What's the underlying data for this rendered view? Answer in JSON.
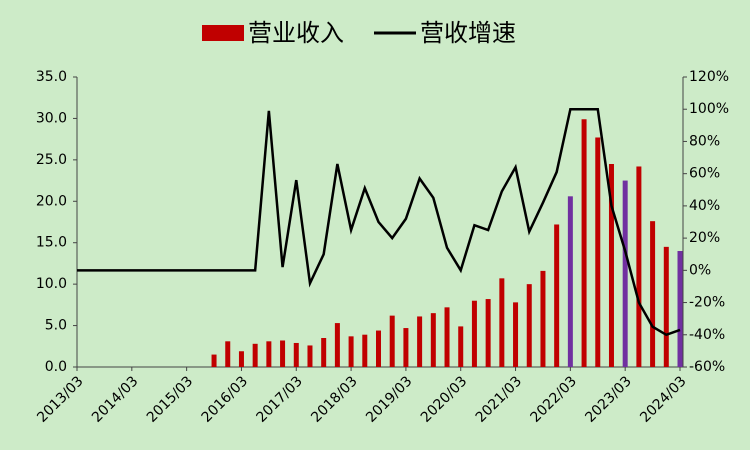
{
  "chart_data": {
    "type": "bar-line",
    "categories": [
      "2013/03",
      null,
      null,
      null,
      "2014/03",
      null,
      null,
      null,
      "2015/03",
      null,
      null,
      null,
      "2016/03",
      null,
      null,
      null,
      "2017/03",
      null,
      null,
      null,
      "2018/03",
      null,
      null,
      null,
      "2019/03",
      null,
      null,
      null,
      "2020/03",
      null,
      null,
      null,
      "2021/03",
      null,
      null,
      null,
      "2022/03",
      null,
      null,
      null,
      "2023/03",
      null,
      null,
      null,
      "2024/03"
    ],
    "series": [
      {
        "name": "营业收入",
        "type": "bar",
        "color": "#c00000",
        "values": [
          null,
          null,
          null,
          null,
          null,
          null,
          null,
          null,
          null,
          null,
          1.5,
          3.1,
          1.9,
          2.8,
          3.1,
          3.2,
          2.9,
          2.6,
          3.5,
          5.3,
          3.7,
          3.9,
          4.4,
          6.2,
          4.7,
          6.1,
          6.5,
          7.2,
          4.9,
          8.0,
          8.2,
          10.7,
          7.8,
          10.0,
          11.6,
          17.2,
          20.6,
          29.9,
          27.7,
          24.5,
          22.5,
          24.2,
          17.6,
          14.5,
          14.0
        ],
        "colors": [
          null,
          null,
          null,
          null,
          null,
          null,
          null,
          null,
          null,
          null,
          "#c00000",
          "#c00000",
          "#c00000",
          "#c00000",
          "#c00000",
          "#c00000",
          "#c00000",
          "#c00000",
          "#c00000",
          "#c00000",
          "#c00000",
          "#c00000",
          "#c00000",
          "#c00000",
          "#c00000",
          "#c00000",
          "#c00000",
          "#c00000",
          "#c00000",
          "#c00000",
          "#c00000",
          "#c00000",
          "#c00000",
          "#c00000",
          "#c00000",
          "#c00000",
          "#7030a0",
          "#c00000",
          "#c00000",
          "#c00000",
          "#7030a0",
          "#c00000",
          "#c00000",
          "#c00000",
          "#7030a0"
        ]
      },
      {
        "name": "营收增速",
        "type": "line",
        "axis": "y2",
        "color": "#000000",
        "values": [
          0,
          0,
          0,
          0,
          0,
          0,
          0,
          0,
          0,
          0,
          0,
          0,
          0,
          0,
          99,
          2,
          56,
          -8,
          10,
          66,
          25,
          51,
          30,
          20,
          32,
          57,
          45,
          14,
          0,
          28,
          25,
          49,
          64,
          24,
          42,
          61,
          100,
          100,
          100,
          40,
          12,
          -20,
          -35,
          -40,
          -37
        ]
      }
    ],
    "ylim": [
      0,
      35
    ],
    "yticks": [
      {
        "value": 0,
        "label": "0.0"
      },
      {
        "value": 5,
        "label": "5.0"
      },
      {
        "value": 10,
        "label": "10.0"
      },
      {
        "value": 15,
        "label": "15.0"
      },
      {
        "value": 20,
        "label": "20.0"
      },
      {
        "value": 25,
        "label": "25.0"
      },
      {
        "value": 30,
        "label": "30.0"
      },
      {
        "value": 35,
        "label": "35.0"
      }
    ],
    "y2lim": [
      -60,
      120
    ],
    "y2ticks": [
      {
        "value": -60,
        "label": "-60%"
      },
      {
        "value": -40,
        "label": "-40%"
      },
      {
        "value": -20,
        "label": "-20%"
      },
      {
        "value": 0,
        "label": "0%"
      },
      {
        "value": 20,
        "label": "20%"
      },
      {
        "value": 40,
        "label": "40%"
      },
      {
        "value": 60,
        "label": "60%"
      },
      {
        "value": 80,
        "label": "80%"
      },
      {
        "value": 100,
        "label": "100%"
      },
      {
        "value": 120,
        "label": "120%"
      }
    ],
    "grid": false
  }
}
